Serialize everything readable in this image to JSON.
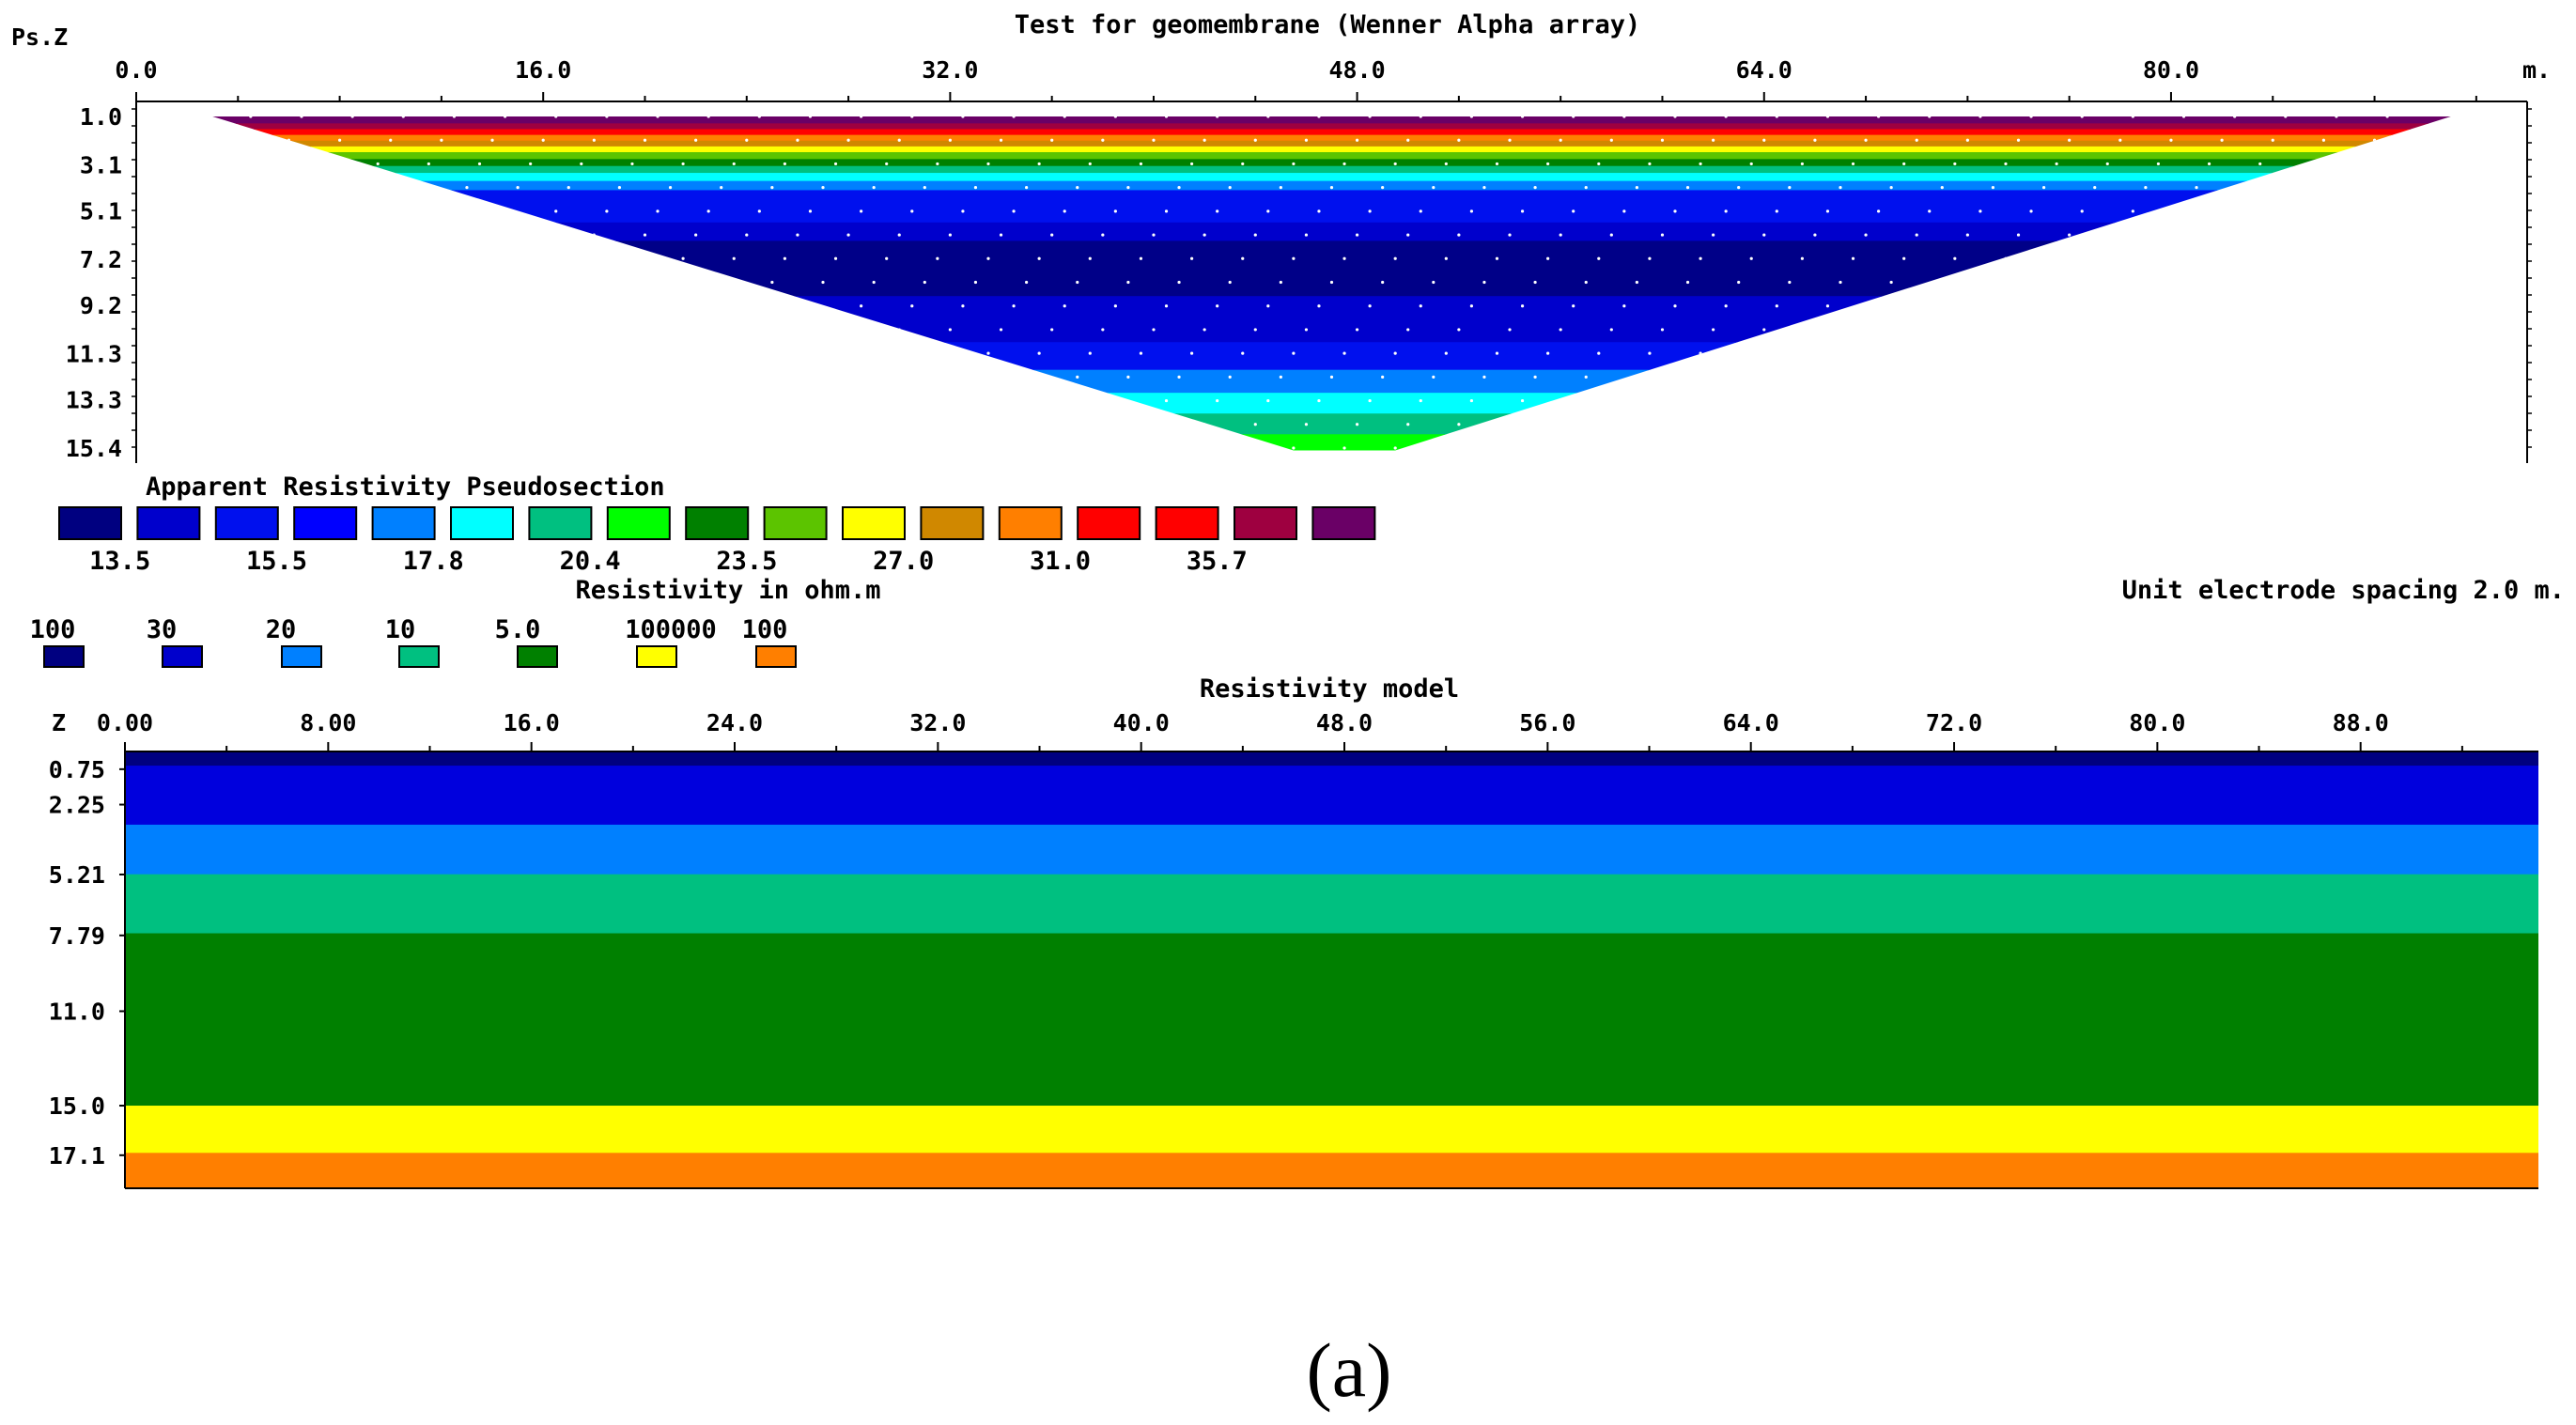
{
  "caption": "(a)",
  "chart_data": [
    {
      "type": "heatmap",
      "panel": "pseudosection",
      "title": "Test for geomembrane (Wenner Alpha array)",
      "y_axis_label": "Ps.Z",
      "x_unit": "m.",
      "x_ticks": [
        "0.0",
        "16.0",
        "32.0",
        "48.0",
        "64.0",
        "80.0"
      ],
      "x_tick_values": [
        0,
        16,
        32,
        48,
        64,
        80
      ],
      "y_ticks": [
        "1.0",
        "3.1",
        "5.1",
        "7.2",
        "9.2",
        "11.3",
        "13.3",
        "15.4"
      ],
      "y_tick_values": [
        1.0,
        3.1,
        5.1,
        7.2,
        9.2,
        11.3,
        13.3,
        15.4
      ],
      "xlim": [
        0,
        94
      ],
      "ylim": [
        1.0,
        15.4
      ],
      "surface_extent": [
        3.0,
        91.0
      ],
      "apex_extent": [
        45.5,
        49.5
      ],
      "bottom_depth": 15.5,
      "data_points": "white dots",
      "bands": [
        {
          "top": 1.0,
          "bottom": 1.3,
          "color": "#6a0066"
        },
        {
          "top": 1.3,
          "bottom": 1.55,
          "color": "#9e0040"
        },
        {
          "top": 1.55,
          "bottom": 1.8,
          "color": "#ff0000"
        },
        {
          "top": 1.8,
          "bottom": 2.05,
          "color": "#ff7f00"
        },
        {
          "top": 2.05,
          "bottom": 2.3,
          "color": "#d08800"
        },
        {
          "top": 2.3,
          "bottom": 2.55,
          "color": "#ffff00"
        },
        {
          "top": 2.55,
          "bottom": 2.85,
          "color": "#5cc400"
        },
        {
          "top": 2.85,
          "bottom": 3.15,
          "color": "#008000"
        },
        {
          "top": 3.15,
          "bottom": 3.45,
          "color": "#00c080"
        },
        {
          "top": 3.45,
          "bottom": 3.8,
          "color": "#00ffff"
        },
        {
          "top": 3.8,
          "bottom": 4.2,
          "color": "#0080ff"
        },
        {
          "top": 4.2,
          "bottom": 5.6,
          "color": "#0010ee"
        },
        {
          "top": 5.6,
          "bottom": 6.4,
          "color": "#0000cc"
        },
        {
          "top": 6.4,
          "bottom": 8.8,
          "color": "#000088"
        },
        {
          "top": 8.8,
          "bottom": 10.8,
          "color": "#0000cc"
        },
        {
          "top": 10.8,
          "bottom": 12.0,
          "color": "#0010ee"
        },
        {
          "top": 12.0,
          "bottom": 13.0,
          "color": "#0080ff"
        },
        {
          "top": 13.0,
          "bottom": 13.9,
          "color": "#00ffff"
        },
        {
          "top": 13.9,
          "bottom": 14.8,
          "color": "#00c080"
        },
        {
          "top": 14.8,
          "bottom": 15.5,
          "color": "#00ff00"
        }
      ]
    },
    {
      "type": "legend",
      "panel": "colour-scale",
      "title": "Apparent Resistivity Pseudosection",
      "subtitle": "Resistivity in ohm.m",
      "note": "Unit electrode spacing 2.0 m.",
      "swatch_colors": [
        "#000080",
        "#0000cc",
        "#0010ee",
        "#0000ff",
        "#0080ff",
        "#00ffff",
        "#00c080",
        "#00ff00",
        "#008000",
        "#5cc400",
        "#ffff00",
        "#d08800",
        "#ff7f00",
        "#ff0000",
        "#ff0000",
        "#9e0040",
        "#6a0066"
      ],
      "labels": [
        "13.5",
        "15.5",
        "17.8",
        "20.4",
        "23.5",
        "27.0",
        "31.0",
        "35.7"
      ]
    },
    {
      "type": "legend",
      "panel": "model-legend",
      "entries": [
        {
          "label": "100",
          "color": "#000080"
        },
        {
          "label": "30",
          "color": "#0000cc"
        },
        {
          "label": "20",
          "color": "#0080ff"
        },
        {
          "label": "10",
          "color": "#00c080"
        },
        {
          "label": "5.0",
          "color": "#008000"
        },
        {
          "label": "100000",
          "color": "#ffff00"
        },
        {
          "label": "100",
          "color": "#ff7f00"
        }
      ]
    },
    {
      "type": "heatmap",
      "panel": "resistivity-model",
      "title": "Resistivity model",
      "y_axis_label": "Z",
      "x_ticks": [
        "0.00",
        "8.00",
        "16.0",
        "24.0",
        "32.0",
        "40.0",
        "48.0",
        "56.0",
        "64.0",
        "72.0",
        "80.0",
        "88.0"
      ],
      "x_tick_values": [
        0,
        8,
        16,
        24,
        32,
        40,
        48,
        56,
        64,
        72,
        80,
        88
      ],
      "y_ticks": [
        "0.75",
        "2.25",
        "5.21",
        "7.79",
        "11.0",
        "15.0",
        "17.1"
      ],
      "y_tick_values": [
        0.75,
        2.25,
        5.21,
        7.79,
        11.0,
        15.0,
        17.1
      ],
      "xlim": [
        0,
        95
      ],
      "ylim": [
        0,
        18.5
      ],
      "layers": [
        {
          "top": 0.0,
          "bottom": 0.6,
          "color": "#000080"
        },
        {
          "top": 0.6,
          "bottom": 3.1,
          "color": "#0000dd"
        },
        {
          "top": 3.1,
          "bottom": 5.2,
          "color": "#0080ff"
        },
        {
          "top": 5.2,
          "bottom": 7.7,
          "color": "#00c080"
        },
        {
          "top": 7.7,
          "bottom": 15.0,
          "color": "#008000"
        },
        {
          "top": 15.0,
          "bottom": 17.0,
          "color": "#ffff00"
        },
        {
          "top": 17.0,
          "bottom": 18.5,
          "color": "#ff7f00"
        }
      ]
    }
  ]
}
